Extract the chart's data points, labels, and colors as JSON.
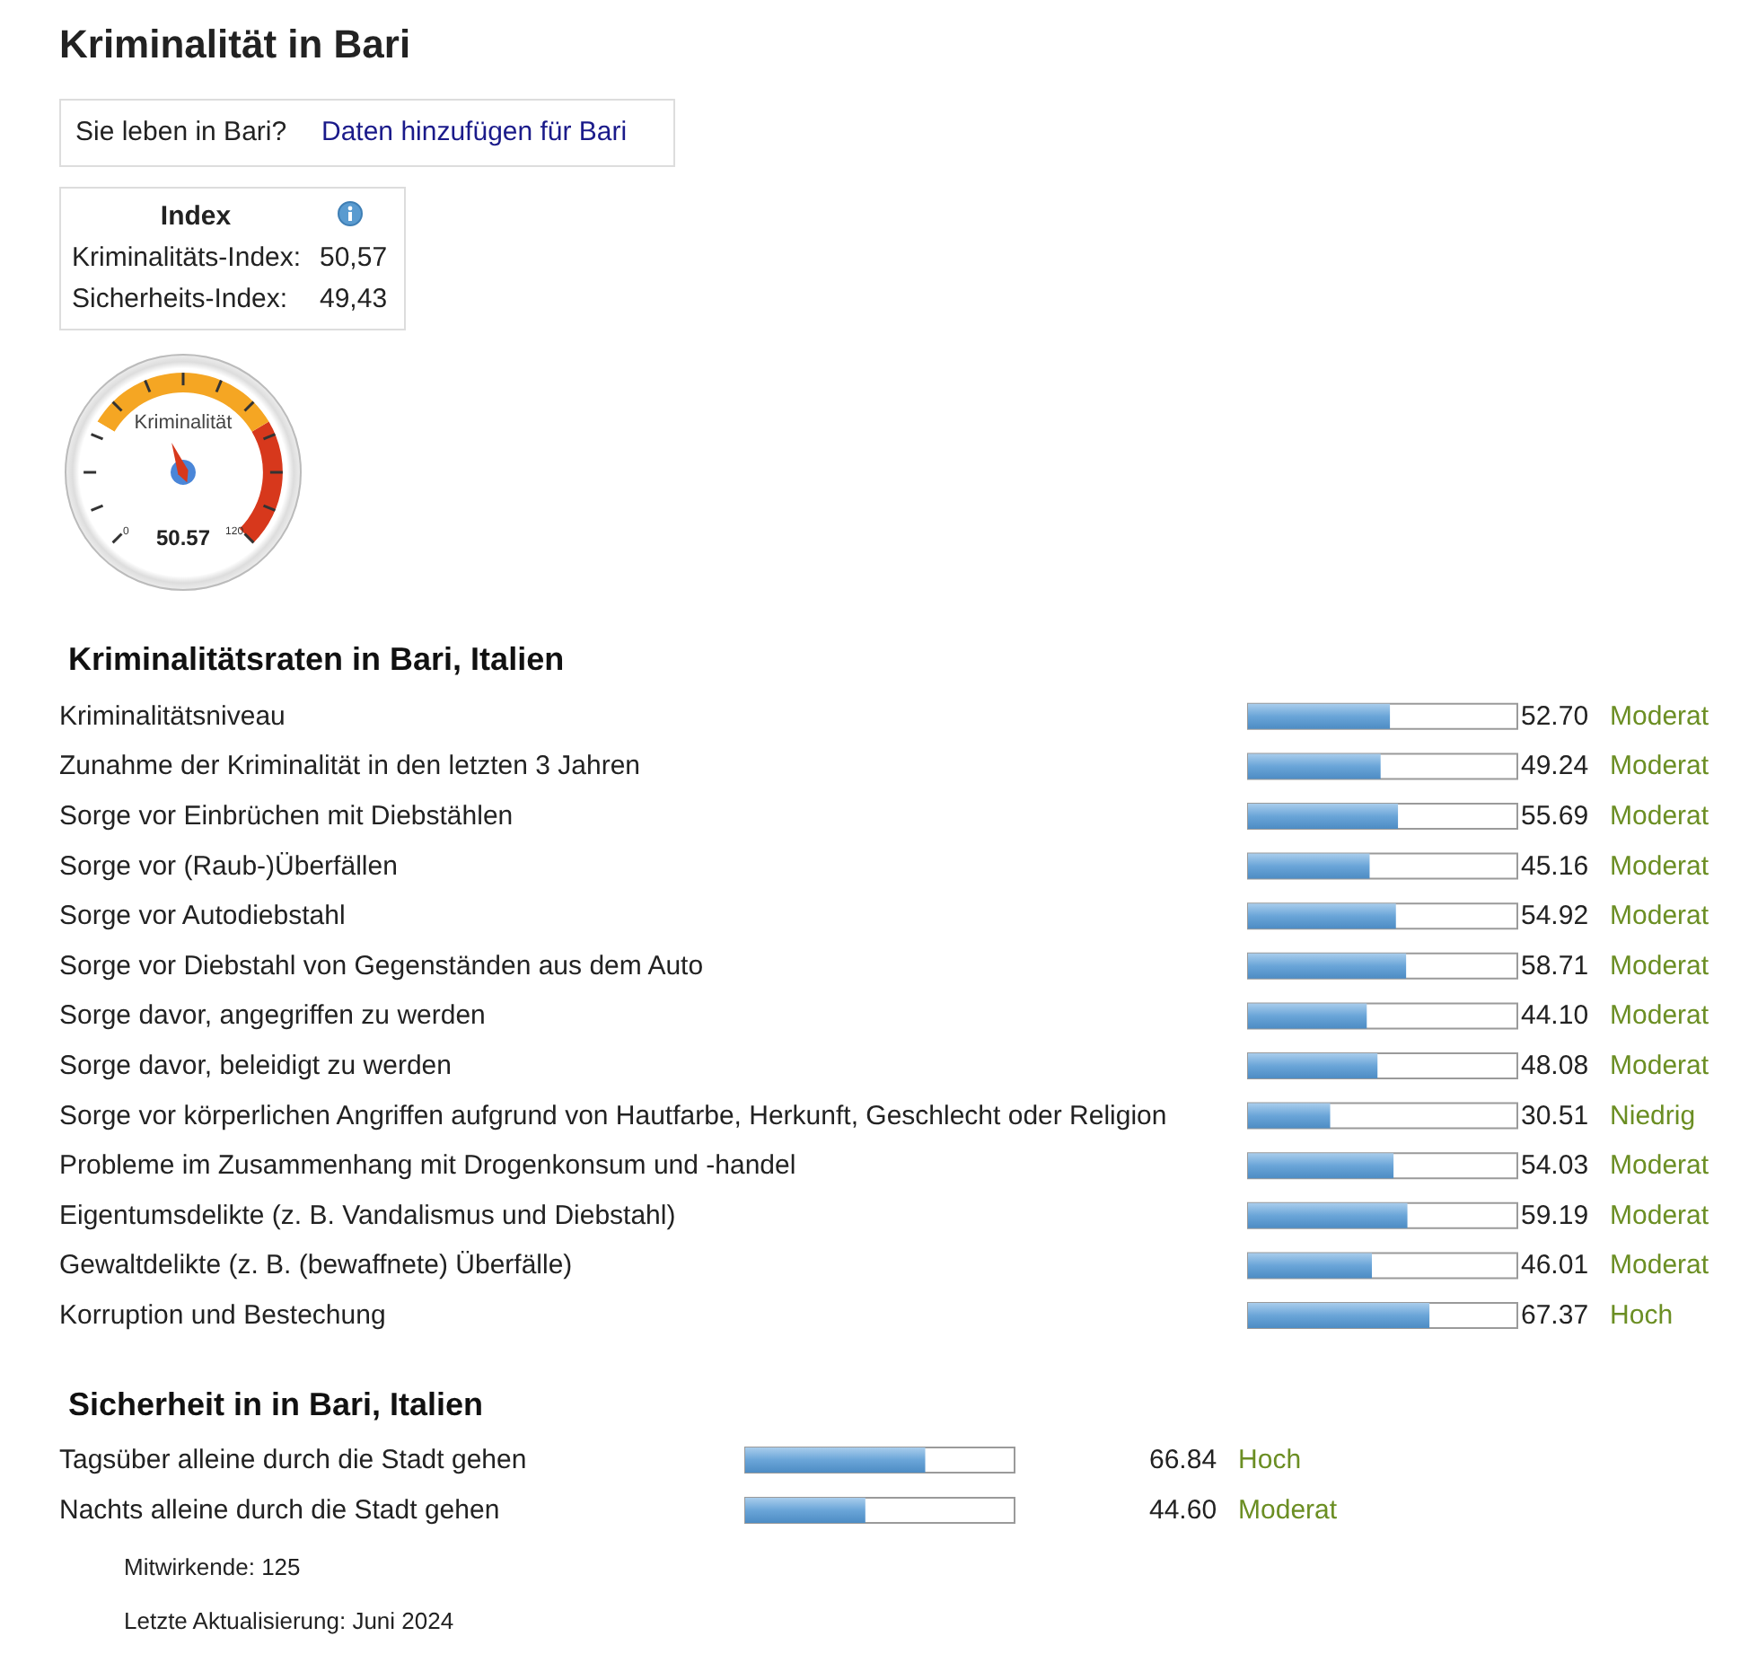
{
  "chart_data": [
    {
      "type": "other",
      "title": "Kriminalität in Bari",
      "annotations": [
        "Sie leben in Bari?",
        "Daten hinzufügen für Bari",
        "Index",
        "Kriminalitäts-Index:",
        "50,57",
        "Sicherheits-Index:",
        "49,43"
      ]
    },
    {
      "type": "other",
      "title": "Kriminalität",
      "annotations": [
        "0",
        "120",
        "50.57"
      ]
    },
    {
      "type": "bar",
      "orientation": "horizontal",
      "title": "Kriminalitätsraten in Bari, Italien",
      "categories": [
        "Kriminalitätsniveau",
        "Zunahme der Kriminalität in den letzten 3 Jahren",
        "Sorge vor Einbrüchen mit Diebstählen",
        "Sorge vor (Raub-)Überfällen",
        "Sorge vor Autodiebstahl",
        "Sorge vor Diebstahl von Gegenständen aus dem Auto",
        "Sorge davor, angegriffen zu werden",
        "Sorge davor, beleidigt zu werden",
        "Sorge vor körperlichen Angriffen aufgrund von Hautfarbe, Herkunft, Geschlecht oder Religion",
        "Probleme im Zusammenhang mit Drogenkonsum und -handel",
        "Eigentumsdelikte (z. B. Vandalismus und Diebstahl)",
        "Gewaltdelikte (z. B. (bewaffnete) Überfälle)",
        "Korruption und Bestechung"
      ],
      "values": [
        52.7,
        49.24,
        55.69,
        45.16,
        54.92,
        58.71,
        44.1,
        48.08,
        30.51,
        54.03,
        59.19,
        46.01,
        67.37
      ],
      "value_labels": [
        "52.70",
        "49.24",
        "55.69",
        "45.16",
        "54.92",
        "58.71",
        "44.10",
        "48.08",
        "30.51",
        "54.03",
        "59.19",
        "46.01",
        "67.37"
      ],
      "color": "#6aa5d8",
      "xlim": [
        0,
        100
      ],
      "tick_labels": "y",
      "annotations": [
        "Moderat",
        "Moderat",
        "Moderat",
        "Moderat",
        "Moderat",
        "Moderat",
        "Moderat",
        "Moderat",
        "Niedrig",
        "Moderat",
        "Moderat",
        "Moderat",
        "Hoch"
      ]
    },
    {
      "type": "bar",
      "orientation": "horizontal",
      "title": "Sicherheit in in Bari, Italien",
      "categories": [
        "Tagsüber alleine durch die Stadt gehen",
        "Nachts alleine durch die Stadt gehen"
      ],
      "values": [
        66.84,
        44.6
      ],
      "value_labels": [
        "66.84",
        "44.60"
      ],
      "color": "#6aa5d8",
      "xlim": [
        0,
        100
      ],
      "tick_labels": "y",
      "annotations": [
        "Hoch",
        "Moderat",
        "Mitwirkende: 125",
        "Letzte Aktualisierung: Juni 2024"
      ]
    }
  ]
}
